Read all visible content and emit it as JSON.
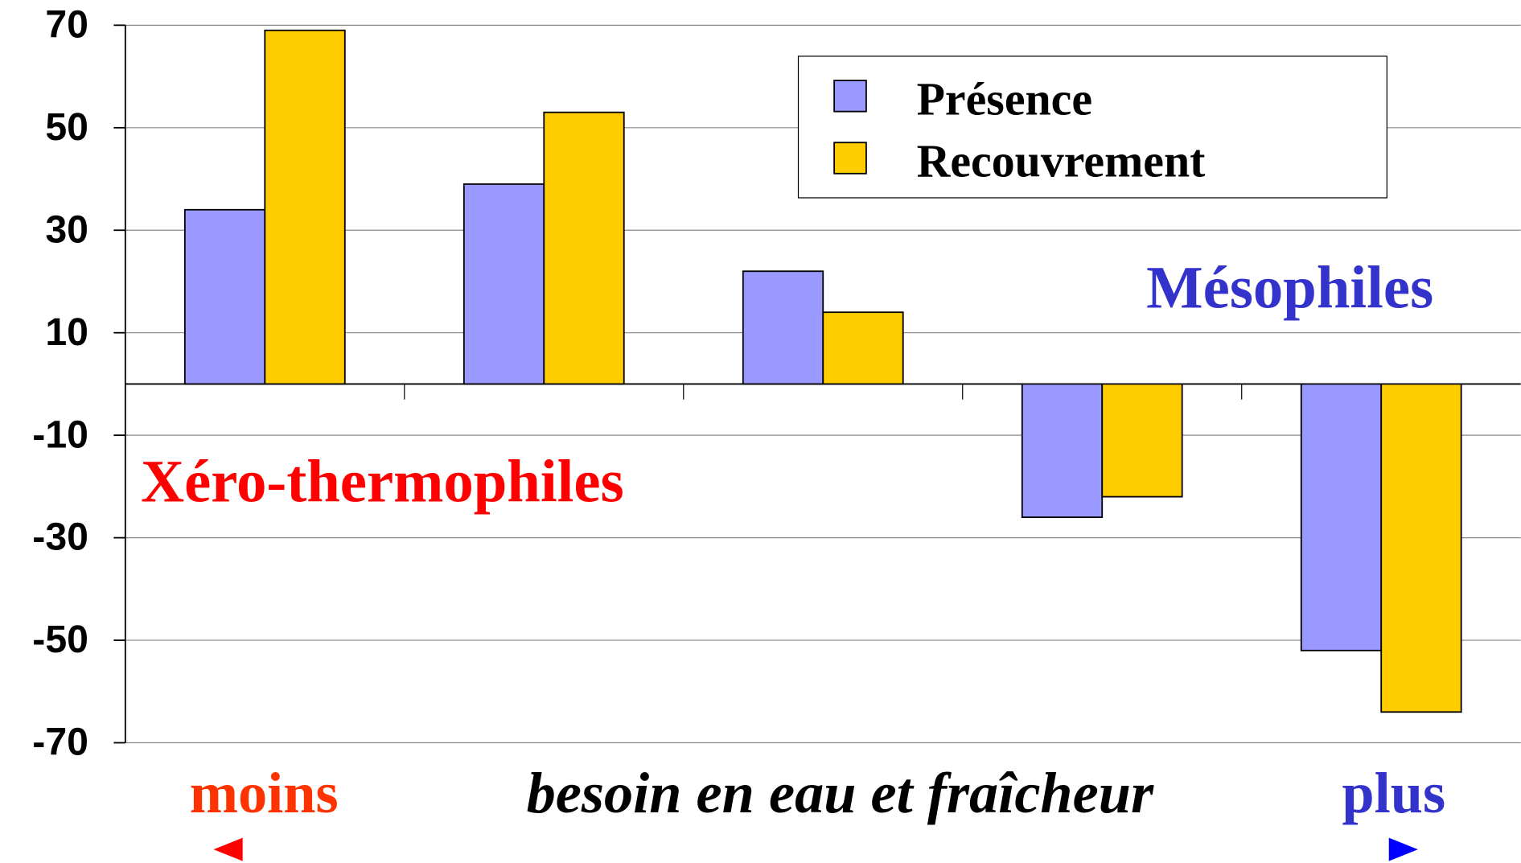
{
  "chart_data": {
    "type": "bar",
    "categories": [
      null,
      null,
      null,
      null,
      null
    ],
    "series": [
      {
        "name": "Présence",
        "color": "#9999ff",
        "values": [
          34,
          39,
          22,
          -26,
          -52
        ]
      },
      {
        "name": "Recouvrement",
        "color": "#ffcc00",
        "values": [
          69,
          53,
          14,
          -22,
          -64
        ]
      }
    ],
    "ylim": [
      -70,
      70
    ],
    "yticks": [
      70,
      50,
      30,
      10,
      -10,
      -30,
      -50,
      -70
    ],
    "grid": true,
    "legend": "top-right",
    "x_axis_label": "besoin en eau et fraîcheur",
    "annotations": [
      {
        "text": "Xéro-thermophiles",
        "color": "#ff0000"
      },
      {
        "text": "Mésophiles",
        "color": "#3333cc"
      },
      {
        "text": "moins",
        "color": "#ff3300"
      },
      {
        "text": "plus",
        "color": "#3333cc"
      }
    ]
  }
}
